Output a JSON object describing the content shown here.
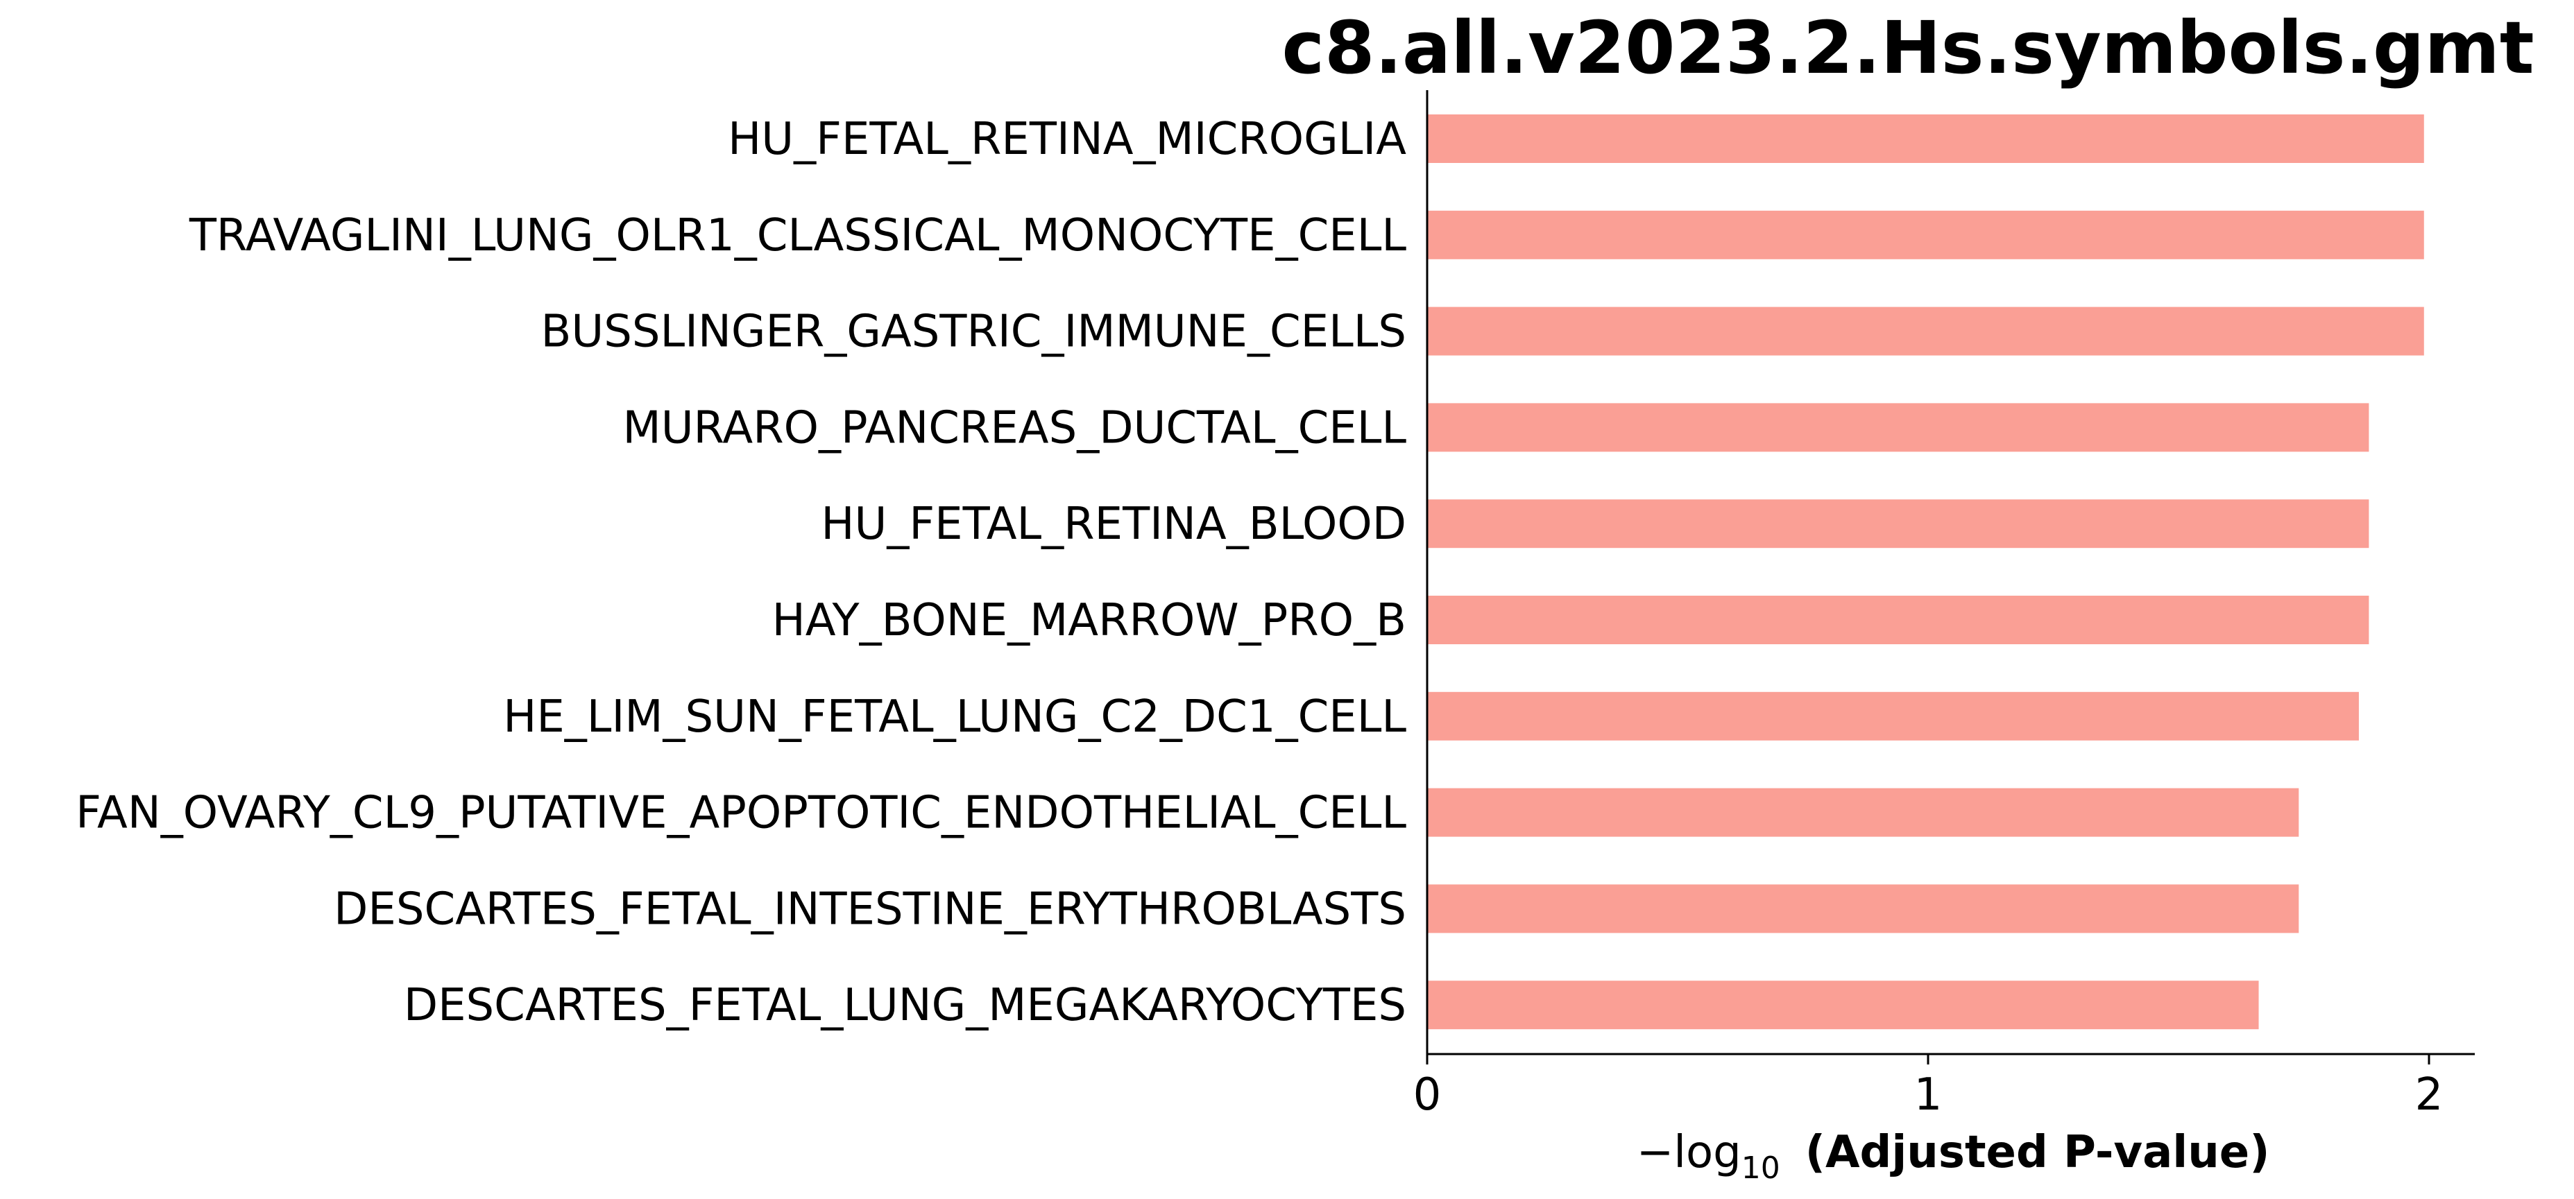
{
  "chart_data": {
    "type": "bar",
    "orientation": "horizontal",
    "title": "c8.all.v2023.2.Hs.symbols.gmt",
    "xlabel_prefix": "−log",
    "xlabel_subscript": "10",
    "xlabel_main": "(Adjusted P-value)",
    "ylabel": "",
    "categories": [
      "HU_FETAL_RETINA_MICROGLIA",
      "TRAVAGLINI_LUNG_OLR1_CLASSICAL_MONOCYTE_CELL",
      "BUSSLINGER_GASTRIC_IMMUNE_CELLS",
      "MURARO_PANCREAS_DUCTAL_CELL",
      "HU_FETAL_RETINA_BLOOD",
      "HAY_BONE_MARROW_PRO_B",
      "HE_LIM_SUN_FETAL_LUNG_C2_DC1_CELL",
      "FAN_OVARY_CL9_PUTATIVE_APOPTOTIC_ENDOTHELIAL_CELL",
      "DESCARTES_FETAL_INTESTINE_ERYTHROBLASTS",
      "DESCARTES_FETAL_LUNG_MEGAKARYOCYTES"
    ],
    "values": [
      1.99,
      1.99,
      1.99,
      1.88,
      1.88,
      1.88,
      1.86,
      1.74,
      1.74,
      1.66
    ],
    "xlim": [
      0,
      2.09
    ],
    "xticks": [
      "0",
      "1",
      "2"
    ],
    "bar_color": "#fa9f95",
    "grid": false,
    "legend": false
  }
}
